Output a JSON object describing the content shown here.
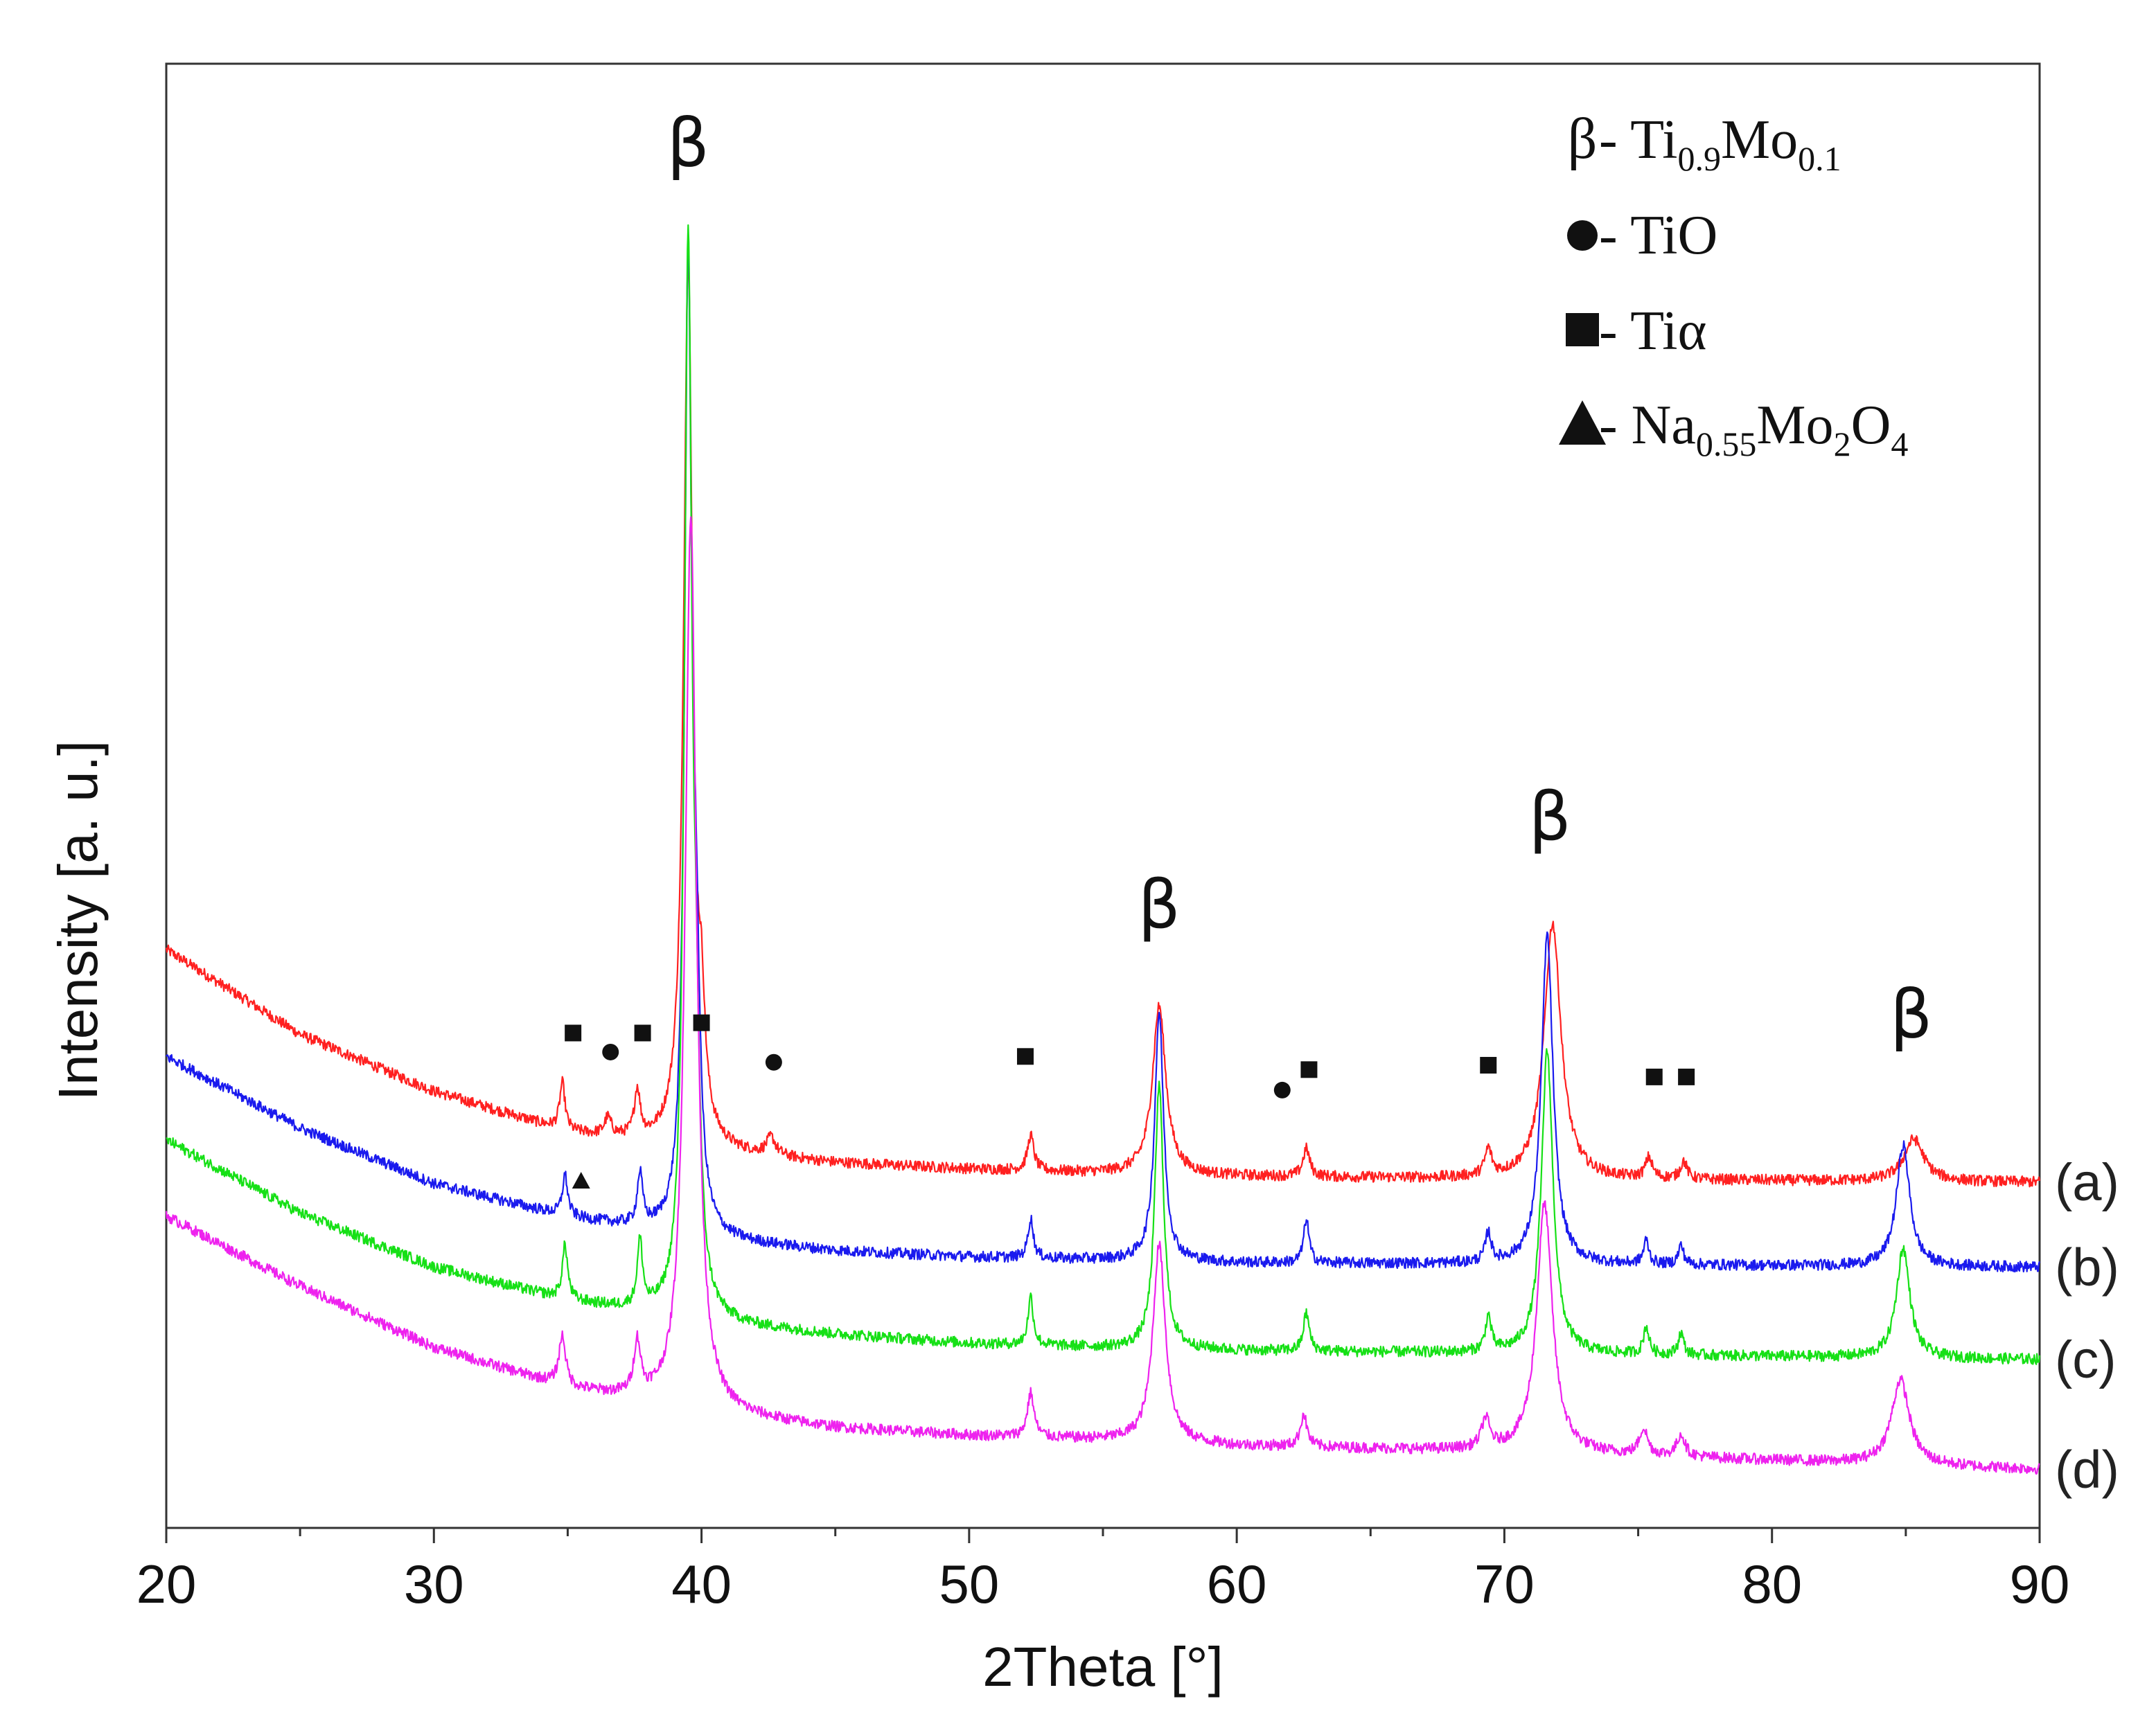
{
  "chart_data": {
    "type": "line",
    "title": "",
    "xlabel": "2Theta [°]",
    "ylabel": "Intensity [a. u.]",
    "xlim": [
      20,
      90
    ],
    "y_scale": "arbitrary units (curves vertically offset)",
    "ylim": [
      0,
      100
    ],
    "x_ticks": [
      "20",
      "30",
      "40",
      "50",
      "60",
      "70",
      "80",
      "90"
    ],
    "grid": false,
    "legend": {
      "position": "top-right",
      "entries": [
        {
          "marker": "β",
          "label": "Ti",
          "sub1": "0.9",
          "label2": "Mo",
          "sub2": "0.1"
        },
        {
          "marker": "circle",
          "label": "TiO"
        },
        {
          "marker": "square",
          "label": "Tiα"
        },
        {
          "marker": "triangle",
          "label": "Na",
          "sub1": "0.55",
          "label2": "Mo",
          "sub2": "2",
          "label3": "O",
          "sub3": "4"
        }
      ],
      "separator": " - "
    },
    "series": [
      {
        "name": "(a)",
        "color": "#ff2020",
        "peak_shift": 0.3,
        "baseline": [
          [
            20,
            39.5
          ],
          [
            25,
            33.7
          ],
          [
            30,
            29.8
          ],
          [
            35,
            27.0
          ],
          [
            40,
            25.7
          ],
          [
            45,
            24.9
          ],
          [
            50,
            24.5
          ],
          [
            55,
            24.2
          ],
          [
            60,
            24.0
          ],
          [
            70,
            23.8
          ],
          [
            80,
            23.7
          ],
          [
            90,
            23.6
          ]
        ],
        "peaks": [
          {
            "x": 34.8,
            "h": 3.2,
            "w": 0.12
          },
          {
            "x": 36.5,
            "h": 1.2,
            "w": 0.15
          },
          {
            "x": 37.6,
            "h": 3.2,
            "w": 0.13
          },
          {
            "x": 39.5,
            "h": 60.5,
            "w": 0.2
          },
          {
            "x": 40.0,
            "h": 6.5,
            "w": 0.15
          },
          {
            "x": 42.6,
            "h": 1.2,
            "w": 0.2
          },
          {
            "x": 52.3,
            "h": 2.4,
            "w": 0.14
          },
          {
            "x": 57.1,
            "h": 11.5,
            "w": 0.3
          },
          {
            "x": 62.6,
            "h": 1.9,
            "w": 0.15
          },
          {
            "x": 69.4,
            "h": 1.8,
            "w": 0.15
          },
          {
            "x": 71.8,
            "h": 17.5,
            "w": 0.38
          },
          {
            "x": 75.4,
            "h": 1.4,
            "w": 0.15
          },
          {
            "x": 76.7,
            "h": 1.2,
            "w": 0.15
          },
          {
            "x": 85.3,
            "h": 2.9,
            "w": 0.45
          }
        ]
      },
      {
        "name": "(b)",
        "color": "#1a1aee",
        "peak_shift": 0.0,
        "baseline": [
          [
            20,
            32.2
          ],
          [
            25,
            27.3
          ],
          [
            30,
            23.5
          ],
          [
            35,
            21.2
          ],
          [
            40,
            19.7
          ],
          [
            45,
            18.9
          ],
          [
            50,
            18.5
          ],
          [
            55,
            18.3
          ],
          [
            60,
            18.1
          ],
          [
            70,
            18.0
          ],
          [
            80,
            17.9
          ],
          [
            90,
            17.8
          ]
        ],
        "peaks": [
          {
            "x": 34.9,
            "h": 2.8,
            "w": 0.12
          },
          {
            "x": 37.7,
            "h": 3.5,
            "w": 0.12
          },
          {
            "x": 39.5,
            "h": 65.0,
            "w": 0.16
          },
          {
            "x": 39.8,
            "h": 14.0,
            "w": 0.16
          },
          {
            "x": 52.3,
            "h": 2.7,
            "w": 0.12
          },
          {
            "x": 57.1,
            "h": 17.0,
            "w": 0.2
          },
          {
            "x": 62.6,
            "h": 3.0,
            "w": 0.12
          },
          {
            "x": 69.4,
            "h": 2.0,
            "w": 0.13
          },
          {
            "x": 71.6,
            "h": 22.5,
            "w": 0.26
          },
          {
            "x": 75.3,
            "h": 1.6,
            "w": 0.12
          },
          {
            "x": 76.6,
            "h": 1.3,
            "w": 0.12
          },
          {
            "x": 84.9,
            "h": 8.3,
            "w": 0.3
          }
        ]
      },
      {
        "name": "(c)",
        "color": "#16e016",
        "peak_shift": 0.0,
        "baseline": [
          [
            20,
            26.5
          ],
          [
            25,
            21.5
          ],
          [
            30,
            17.8
          ],
          [
            35,
            15.5
          ],
          [
            40,
            14.0
          ],
          [
            45,
            13.2
          ],
          [
            50,
            12.6
          ],
          [
            55,
            12.3
          ],
          [
            60,
            12.1
          ],
          [
            70,
            11.9
          ],
          [
            80,
            11.7
          ],
          [
            90,
            11.5
          ]
        ],
        "peaks": [
          {
            "x": 34.9,
            "h": 3.7,
            "w": 0.12
          },
          {
            "x": 37.7,
            "h": 4.5,
            "w": 0.12
          },
          {
            "x": 39.5,
            "h": 72.0,
            "w": 0.17
          },
          {
            "x": 39.8,
            "h": 12.0,
            "w": 0.16
          },
          {
            "x": 52.3,
            "h": 3.3,
            "w": 0.12
          },
          {
            "x": 57.1,
            "h": 18.0,
            "w": 0.2
          },
          {
            "x": 62.6,
            "h": 2.6,
            "w": 0.13
          },
          {
            "x": 69.4,
            "h": 2.4,
            "w": 0.13
          },
          {
            "x": 71.6,
            "h": 20.7,
            "w": 0.26
          },
          {
            "x": 75.3,
            "h": 1.9,
            "w": 0.12
          },
          {
            "x": 76.6,
            "h": 1.5,
            "w": 0.12
          },
          {
            "x": 84.9,
            "h": 7.5,
            "w": 0.3
          }
        ]
      },
      {
        "name": "(d)",
        "color": "#ee22ee",
        "peak_shift": 0.0,
        "baseline": [
          [
            20,
            21.3
          ],
          [
            25,
            16.5
          ],
          [
            30,
            12.3
          ],
          [
            35,
            9.5
          ],
          [
            40,
            7.8
          ],
          [
            45,
            6.8
          ],
          [
            50,
            6.3
          ],
          [
            55,
            6.0
          ],
          [
            60,
            5.6
          ],
          [
            70,
            5.2
          ],
          [
            80,
            4.6
          ],
          [
            90,
            4.0
          ]
        ],
        "peaks": [
          {
            "x": 34.8,
            "h": 3.4,
            "w": 0.15
          },
          {
            "x": 37.6,
            "h": 3.6,
            "w": 0.15
          },
          {
            "x": 39.6,
            "h": 61.0,
            "w": 0.25
          },
          {
            "x": 52.3,
            "h": 3.0,
            "w": 0.15
          },
          {
            "x": 57.1,
            "h": 13.5,
            "w": 0.28
          },
          {
            "x": 62.5,
            "h": 2.2,
            "w": 0.15
          },
          {
            "x": 69.3,
            "h": 2.0,
            "w": 0.18
          },
          {
            "x": 71.5,
            "h": 17.0,
            "w": 0.35
          },
          {
            "x": 75.2,
            "h": 1.8,
            "w": 0.18
          },
          {
            "x": 76.6,
            "h": 1.5,
            "w": 0.18
          },
          {
            "x": 84.8,
            "h": 5.8,
            "w": 0.4
          }
        ]
      }
    ],
    "annotations": [
      {
        "type": "label",
        "text": "β",
        "x": 39.5,
        "y": 93.0,
        "size": "large"
      },
      {
        "type": "label",
        "text": "β",
        "x": 57.1,
        "y": 41.0,
        "size": "large"
      },
      {
        "type": "label",
        "text": "β",
        "x": 71.7,
        "y": 47.0,
        "size": "large"
      },
      {
        "type": "label",
        "text": "β",
        "x": 85.2,
        "y": 33.5,
        "size": "large"
      },
      {
        "type": "marker",
        "shape": "square",
        "x": 35.2,
        "y": 33.8
      },
      {
        "type": "marker",
        "shape": "circle",
        "x": 36.6,
        "y": 32.5
      },
      {
        "type": "marker",
        "shape": "square",
        "x": 37.8,
        "y": 33.8
      },
      {
        "type": "marker",
        "shape": "square",
        "x": 40.0,
        "y": 34.5
      },
      {
        "type": "marker",
        "shape": "circle",
        "x": 42.7,
        "y": 31.8
      },
      {
        "type": "marker",
        "shape": "square",
        "x": 52.1,
        "y": 32.2
      },
      {
        "type": "marker",
        "shape": "circle",
        "x": 61.7,
        "y": 29.9
      },
      {
        "type": "marker",
        "shape": "square",
        "x": 62.7,
        "y": 31.3
      },
      {
        "type": "marker",
        "shape": "square",
        "x": 69.4,
        "y": 31.6
      },
      {
        "type": "marker",
        "shape": "square",
        "x": 75.6,
        "y": 30.8
      },
      {
        "type": "marker",
        "shape": "square",
        "x": 76.8,
        "y": 30.8
      },
      {
        "type": "marker",
        "shape": "triangle",
        "x": 35.5,
        "y": 23.7
      }
    ]
  }
}
